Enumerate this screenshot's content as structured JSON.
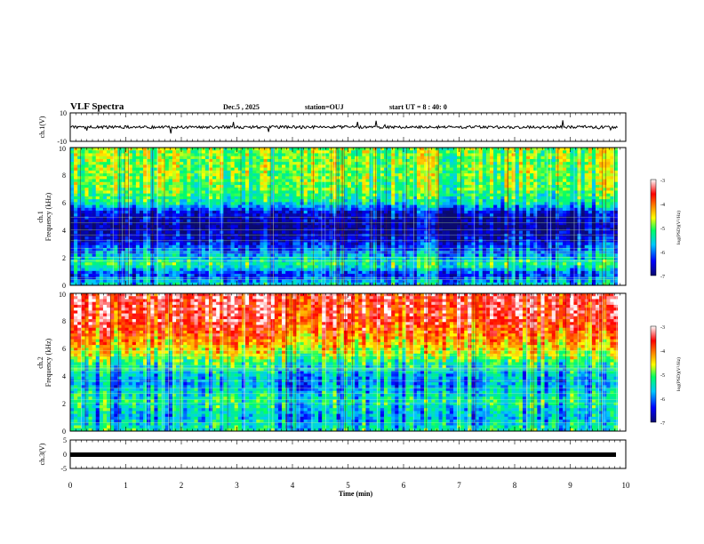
{
  "header": {
    "title": "VLF Spectra",
    "date": "Dec.5 , 2025",
    "station": "station=OUJ",
    "start_ut": "start UT = 8 : 40: 0"
  },
  "panels": {
    "ch1_wave": {
      "ylabel": "ch.1(V)",
      "ticks": [
        "10",
        "-10"
      ],
      "ylim": [
        -10,
        10
      ]
    },
    "ch1_spec": {
      "ylabel_top": "ch.1",
      "ylabel_bottom": "Frequency (kHz)",
      "ticks": [
        "0",
        "2",
        "4",
        "6",
        "8",
        "10"
      ],
      "ylim": [
        0,
        10
      ]
    },
    "ch2_spec": {
      "ylabel_top": "ch.2",
      "ylabel_bottom": "Frequency (kHz)",
      "ticks": [
        "0",
        "2",
        "4",
        "6",
        "8",
        "10"
      ],
      "ylim": [
        0,
        10
      ]
    },
    "ch3_wave": {
      "ylabel": "ch.3(V)",
      "ticks": [
        "5",
        "0",
        "-5"
      ],
      "ylim": [
        -5,
        5
      ]
    }
  },
  "colorbar": {
    "label": "log(PSD)(V²/Hz)",
    "ticks": [
      "-3",
      "-4",
      "-5",
      "-6",
      "-7"
    ],
    "range": [
      -7,
      -3
    ],
    "colors": [
      "#0a0a6e",
      "#0000ff",
      "#00c8ff",
      "#00ff64",
      "#ffff00",
      "#ff8800",
      "#ff0000",
      "#ffffff"
    ]
  },
  "chart_data": {
    "type": "heatmap",
    "title": "VLF Spectra",
    "xlabel": "Time (min)",
    "x_ticks": [
      "0",
      "1",
      "2",
      "3",
      "4",
      "5",
      "6",
      "7",
      "8",
      "9",
      "10"
    ],
    "xlim": [
      0,
      10
    ],
    "data_end_min": 9.85,
    "ylabel": "Frequency (kHz)",
    "ylim": [
      0,
      10
    ],
    "z_range": [
      -7,
      -3
    ],
    "ch1_level_profile": [
      {
        "f": 0,
        "z": -5.5
      },
      {
        "f": 0.8,
        "z": -6.3
      },
      {
        "f": 1.5,
        "z": -5.2
      },
      {
        "f": 2.2,
        "z": -5.8
      },
      {
        "f": 3.2,
        "z": -6.5
      },
      {
        "f": 4.3,
        "z": -6.9
      },
      {
        "f": 5.3,
        "z": -6.5
      },
      {
        "f": 6.0,
        "z": -5.4
      },
      {
        "f": 7.0,
        "z": -5.0
      },
      {
        "f": 8.5,
        "z": -4.9
      },
      {
        "f": 10,
        "z": -4.9
      }
    ],
    "ch2_level_profile": [
      {
        "f": 0,
        "z": -5.4
      },
      {
        "f": 1.0,
        "z": -5.8
      },
      {
        "f": 2.2,
        "z": -5.4
      },
      {
        "f": 3.5,
        "z": -5.9
      },
      {
        "f": 4.5,
        "z": -5.6
      },
      {
        "f": 5.5,
        "z": -4.8
      },
      {
        "f": 6.5,
        "z": -4.3
      },
      {
        "f": 8.0,
        "z": -3.7
      },
      {
        "f": 10,
        "z": -3.5
      }
    ],
    "ch1_wave_amplitude_v": 2,
    "ch3_level_v": 0
  }
}
